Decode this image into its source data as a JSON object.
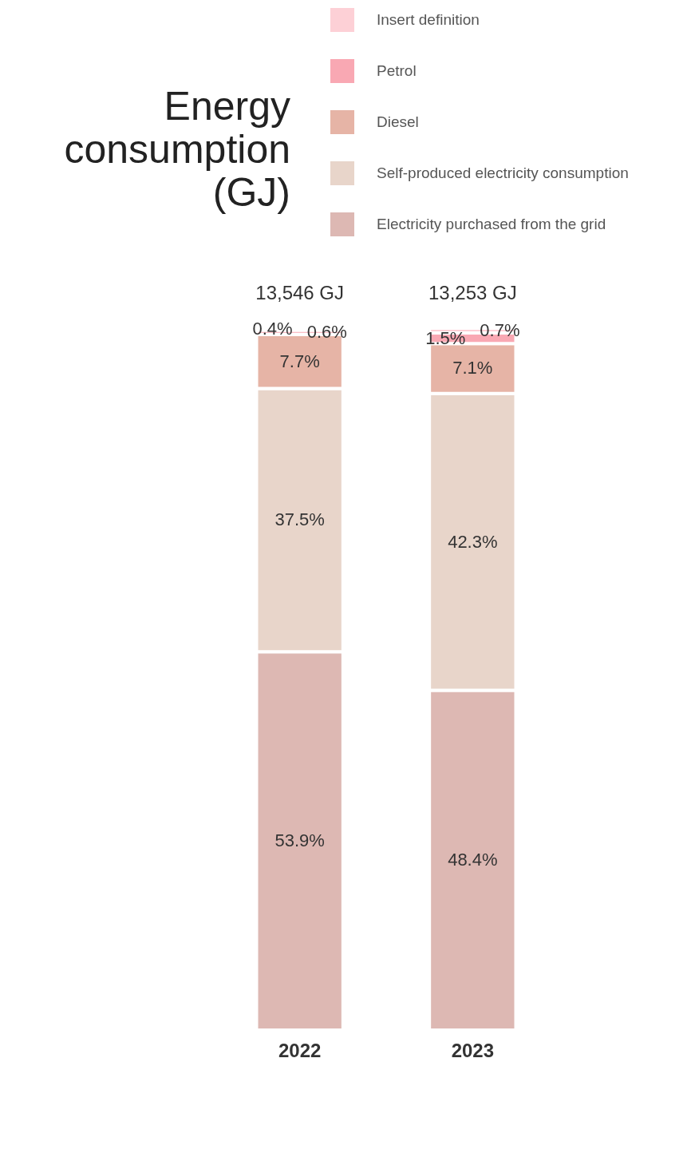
{
  "chart_data": {
    "type": "bar",
    "stacked": true,
    "title": "Energy consumption (GJ)",
    "categories": [
      "2022",
      "2023"
    ],
    "series": [
      {
        "name": "Electricity purchased from the grid",
        "color": "#ddb8b3",
        "values": [
          53.9,
          48.4
        ],
        "value_labels": [
          "53.9%",
          "48.4%"
        ]
      },
      {
        "name": "Self-produced electricity consumption",
        "color": "#e8d5ca",
        "values": [
          37.5,
          42.3
        ],
        "value_labels": [
          "37.5%",
          "42.3%"
        ]
      },
      {
        "name": "Diesel",
        "color": "#e6b4a6",
        "values": [
          7.7,
          7.1
        ],
        "value_labels": [
          "7.7%",
          "7.1%"
        ]
      },
      {
        "name": "Petrol",
        "color": "#f9a8b3",
        "values": [
          0.6,
          1.5
        ],
        "value_labels": [
          "0.6%",
          "1.5%"
        ]
      },
      {
        "name": "Insert definition",
        "color": "#fdd0d6",
        "values": [
          0.4,
          0.7
        ],
        "value_labels": [
          "0.4%",
          "0.7%"
        ]
      }
    ],
    "annotations": [
      "13,546 GJ",
      "13,253 GJ"
    ],
    "legend": "top right"
  }
}
